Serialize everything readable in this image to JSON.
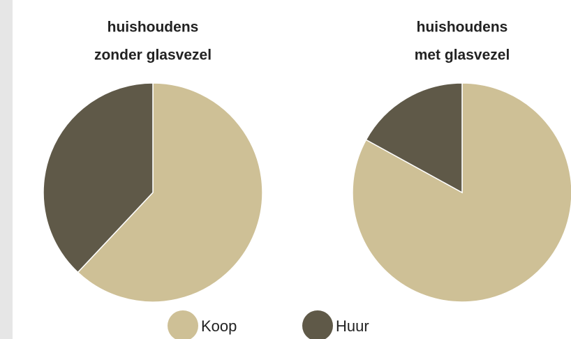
{
  "chart_data": [
    {
      "type": "pie",
      "title": [
        "huishoudens",
        "zonder glasvezel"
      ],
      "categories": [
        "Koop",
        "Huur"
      ],
      "values": [
        62,
        38
      ],
      "colors": [
        "#cec096",
        "#5f5948"
      ]
    },
    {
      "type": "pie",
      "title": [
        "huishoudens",
        "met glasvezel"
      ],
      "categories": [
        "Koop",
        "Huur"
      ],
      "values": [
        83,
        17
      ],
      "colors": [
        "#cec096",
        "#5f5948"
      ]
    }
  ]
}
